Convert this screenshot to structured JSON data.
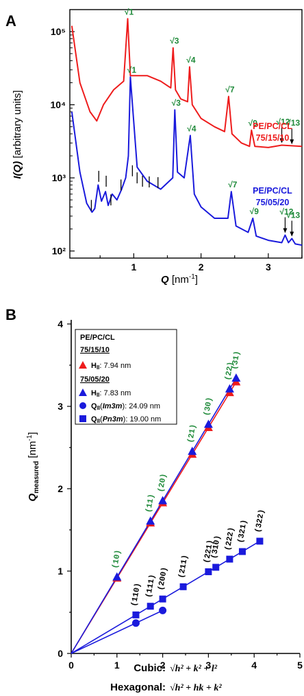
{
  "colors": {
    "red": "#ee1c1c",
    "blue": "#1a1adc",
    "green": "#1f8a3a",
    "black": "#000000"
  },
  "panel_a": {
    "letter": "A",
    "ylabel_main": "I",
    "ylabel_arg": "(Q)",
    "ylabel_units": " [arbitrary units]",
    "xlabel_sym": "Q",
    "xlabel_units": " [nm",
    "xlabel_exp": "-1",
    "xlabel_close": "]",
    "red_label": {
      "line1": "PE/PC/CL",
      "line2": "75/15/10"
    },
    "blue_label": {
      "line1": "PE/PC/CL",
      "line2": "75/05/20"
    },
    "red_peaks": [
      "√1",
      "√3",
      "√4",
      "√7",
      "√9",
      "√12",
      "√13"
    ],
    "blue_peaks": [
      "√1",
      "√3",
      "√4",
      "√7",
      "√9",
      "√12",
      "√13"
    ]
  },
  "panel_b": {
    "letter": "B",
    "ylabel_sym": "Q",
    "ylabel_sub": "measured",
    "ylabel_units": " [nm",
    "ylabel_exp": "-1",
    "ylabel_close": "]",
    "xlabel_cubic_prefix": "Cubic: ",
    "xlabel_cubic_formula": "√h² + k² + l²",
    "xlabel_hex_prefix": "Hexagonal: ",
    "xlabel_hex_formula": "√h² + hk + k²",
    "legend": {
      "title": "PE/PC/CL",
      "group1": "75/15/10",
      "g1_item": "H",
      "g1_item_sub": "II",
      "g1_item_val": ": 7.94 nm",
      "group2": "75/05/20",
      "g2_item1": "H",
      "g2_item1_sub": "II",
      "g2_item1_val": ": 7.83 nm",
      "g2_item2": "Q",
      "g2_item2_sub": "II",
      "g2_item2_phase": "Im3m",
      "g2_item2_val": ": 24.09 nm",
      "g2_item3": "Q",
      "g2_item3_sub": "II",
      "g2_item3_phase": "Pn3m",
      "g2_item3_val": ": 19.00 nm"
    },
    "hex_miller": [
      "(10)",
      "(11)",
      "(20)",
      "(21)",
      "(30)",
      "(22)",
      "(31)"
    ],
    "cubic_miller": [
      "(110)",
      "(111)",
      "(200)",
      "(211)",
      "(221)",
      "(310)",
      "(222)",
      "(321)",
      "(322)"
    ]
  },
  "chart_data": [
    {
      "type": "line",
      "xlabel": "Q [nm-1]",
      "ylabel": "I(Q) [arbitrary units]",
      "xlim": [
        0.05,
        3.5
      ],
      "ylim": [
        80,
        200000
      ],
      "yscale": "log",
      "xticks": [
        1,
        2,
        3
      ],
      "yticks": [
        "10²",
        "10³",
        "10⁴",
        "10⁵"
      ],
      "series": [
        {
          "name": "PE/PC/CL 75/15/10",
          "color": "#ee1c1c",
          "x": [
            0.08,
            0.2,
            0.35,
            0.45,
            0.55,
            0.7,
            0.85,
            0.91,
            0.95,
            1.0,
            1.2,
            1.4,
            1.55,
            1.585,
            1.62,
            1.7,
            1.8,
            1.83,
            1.87,
            2.0,
            2.2,
            2.35,
            2.41,
            2.46,
            2.6,
            2.72,
            2.75,
            2.8,
            3.0,
            3.2,
            3.5
          ],
          "y": [
            120000,
            20000,
            8000,
            6000,
            10000,
            16000,
            21000,
            150000,
            25000,
            25000,
            25000,
            21000,
            17000,
            60000,
            16000,
            12000,
            11000,
            33000,
            10000,
            6500,
            5000,
            4300,
            13000,
            4000,
            3000,
            2700,
            4500,
            2700,
            2600,
            2800,
            2700
          ]
        },
        {
          "name": "PE/PC/CL 75/05/20",
          "color": "#1a1adc",
          "x": [
            0.08,
            0.2,
            0.3,
            0.38,
            0.42,
            0.47,
            0.52,
            0.58,
            0.62,
            0.68,
            0.75,
            0.82,
            0.88,
            0.92,
            0.95,
            1.05,
            1.2,
            1.4,
            1.58,
            1.61,
            1.65,
            1.75,
            1.84,
            1.9,
            2.0,
            2.2,
            2.4,
            2.45,
            2.52,
            2.7,
            2.77,
            2.82,
            3.0,
            3.2,
            3.25,
            3.3,
            3.35,
            3.4,
            3.5
          ],
          "y": [
            8000,
            1200,
            450,
            340,
            380,
            800,
            480,
            650,
            420,
            600,
            500,
            700,
            1000,
            2000,
            24000,
            1400,
            900,
            700,
            1000,
            8500,
            1200,
            1000,
            3800,
            600,
            400,
            280,
            280,
            650,
            220,
            180,
            280,
            160,
            140,
            130,
            165,
            130,
            148,
            125,
            120
          ]
        }
      ]
    },
    {
      "type": "scatter",
      "xlabel": "Cubic: √h²+k²+l² ; Hexagonal: √h²+hk+k²",
      "ylabel": "Q measured [nm-1]",
      "xlim": [
        0,
        5
      ],
      "ylim": [
        0,
        4
      ],
      "xticks": [
        0,
        1,
        2,
        3,
        4,
        5
      ],
      "yticks": [
        0,
        1,
        2,
        3,
        4
      ],
      "series": [
        {
          "name": "75/15/10 HII: 7.94 nm",
          "marker": "triangle",
          "color": "#ee1c1c",
          "x": [
            1,
            1.732,
            2,
            2.646,
            3,
            3.464,
            3.606
          ],
          "y": [
            0.914,
            1.583,
            1.828,
            2.418,
            2.742,
            3.166,
            3.296
          ]
        },
        {
          "name": "75/05/20 HII: 7.83 nm",
          "marker": "triangle",
          "color": "#1a1adc",
          "x": [
            1,
            1.732,
            2,
            2.646,
            3,
            3.464,
            3.606
          ],
          "y": [
            0.927,
            1.605,
            1.853,
            2.452,
            2.78,
            3.21,
            3.342
          ]
        },
        {
          "name": "75/05/20 QII(Im3m): 24.09 nm",
          "marker": "circle",
          "color": "#1a1adc",
          "x": [
            1.414,
            2
          ],
          "y": [
            0.369,
            0.522
          ]
        },
        {
          "name": "75/05/20 QII(Pn3m): 19.00 nm",
          "marker": "square",
          "color": "#1a1adc",
          "x": [
            1.414,
            1.732,
            2,
            2.449,
            3,
            3.162,
            3.464,
            3.742,
            4.123
          ],
          "y": [
            0.468,
            0.573,
            0.661,
            0.81,
            0.992,
            1.046,
            1.145,
            1.237,
            1.363
          ]
        }
      ]
    }
  ]
}
